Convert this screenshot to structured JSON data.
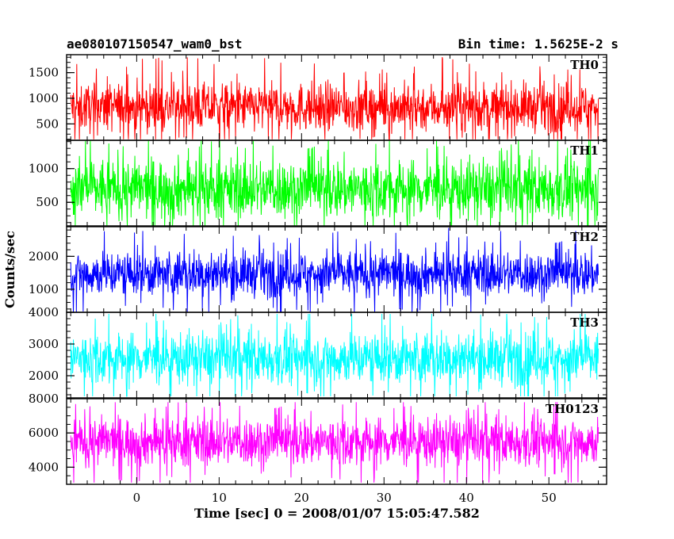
{
  "chart_data": {
    "type": "line",
    "title_left": "ae080107150547_wam0_bst",
    "title_right": "Bin time: 1.5625E-2 s",
    "ylabel": "Counts/sec",
    "xlabel": "Time [sec] 0 = 2008/01/07 15:05:47.582",
    "xlim": [
      -8.5,
      57
    ],
    "data_x_range": [
      -8.0,
      56.0
    ],
    "x_ticks": [
      0,
      10,
      20,
      30,
      40,
      50
    ],
    "x_tick_labels": [
      "0",
      "10",
      "20",
      "30",
      "40",
      "50"
    ],
    "x_minor_step": 2,
    "panels": [
      {
        "name": "TH0",
        "color": "#ff0000",
        "ylim": [
          180,
          1850
        ],
        "y_ticks": [
          500,
          1000,
          1500
        ],
        "y_tick_labels": [
          "500",
          "1000",
          "1500"
        ],
        "y_minor_step": 100,
        "typical_low": 400,
        "typical_high": 1250,
        "min": 200,
        "max": 1850
      },
      {
        "name": "TH1",
        "color": "#00ff00",
        "ylim": [
          150,
          1420
        ],
        "y_ticks": [
          500,
          1000
        ],
        "y_tick_labels": [
          "500",
          "1000"
        ],
        "y_minor_step": 100,
        "typical_low": 300,
        "typical_high": 1100,
        "min": 150,
        "max": 1420
      },
      {
        "name": "TH2",
        "color": "#0000ff",
        "ylim": [
          300,
          2900
        ],
        "y_ticks": [
          1000,
          2000
        ],
        "y_tick_labels": [
          "1000",
          "2000"
        ],
        "y_minor_step": 200,
        "typical_low": 850,
        "typical_high": 2100,
        "min": 300,
        "max": 2900
      },
      {
        "name": "TH3",
        "color": "#00ffff",
        "ylim": [
          1300,
          4000
        ],
        "y_ticks": [
          2000,
          3000,
          4000
        ],
        "y_tick_labels": [
          "2000",
          "3000",
          "4000"
        ],
        "y_minor_step": 200,
        "typical_low": 1800,
        "typical_high": 3300,
        "min": 1350,
        "max": 3950
      },
      {
        "name": "TH0123",
        "color": "#ff00ff",
        "ylim": [
          3000,
          8000
        ],
        "y_ticks": [
          4000,
          6000,
          8000
        ],
        "y_tick_labels": [
          "4000",
          "6000",
          "8000"
        ],
        "y_minor_step": 500,
        "typical_low": 4200,
        "typical_high": 6800,
        "min": 3100,
        "max": 7800
      }
    ]
  }
}
